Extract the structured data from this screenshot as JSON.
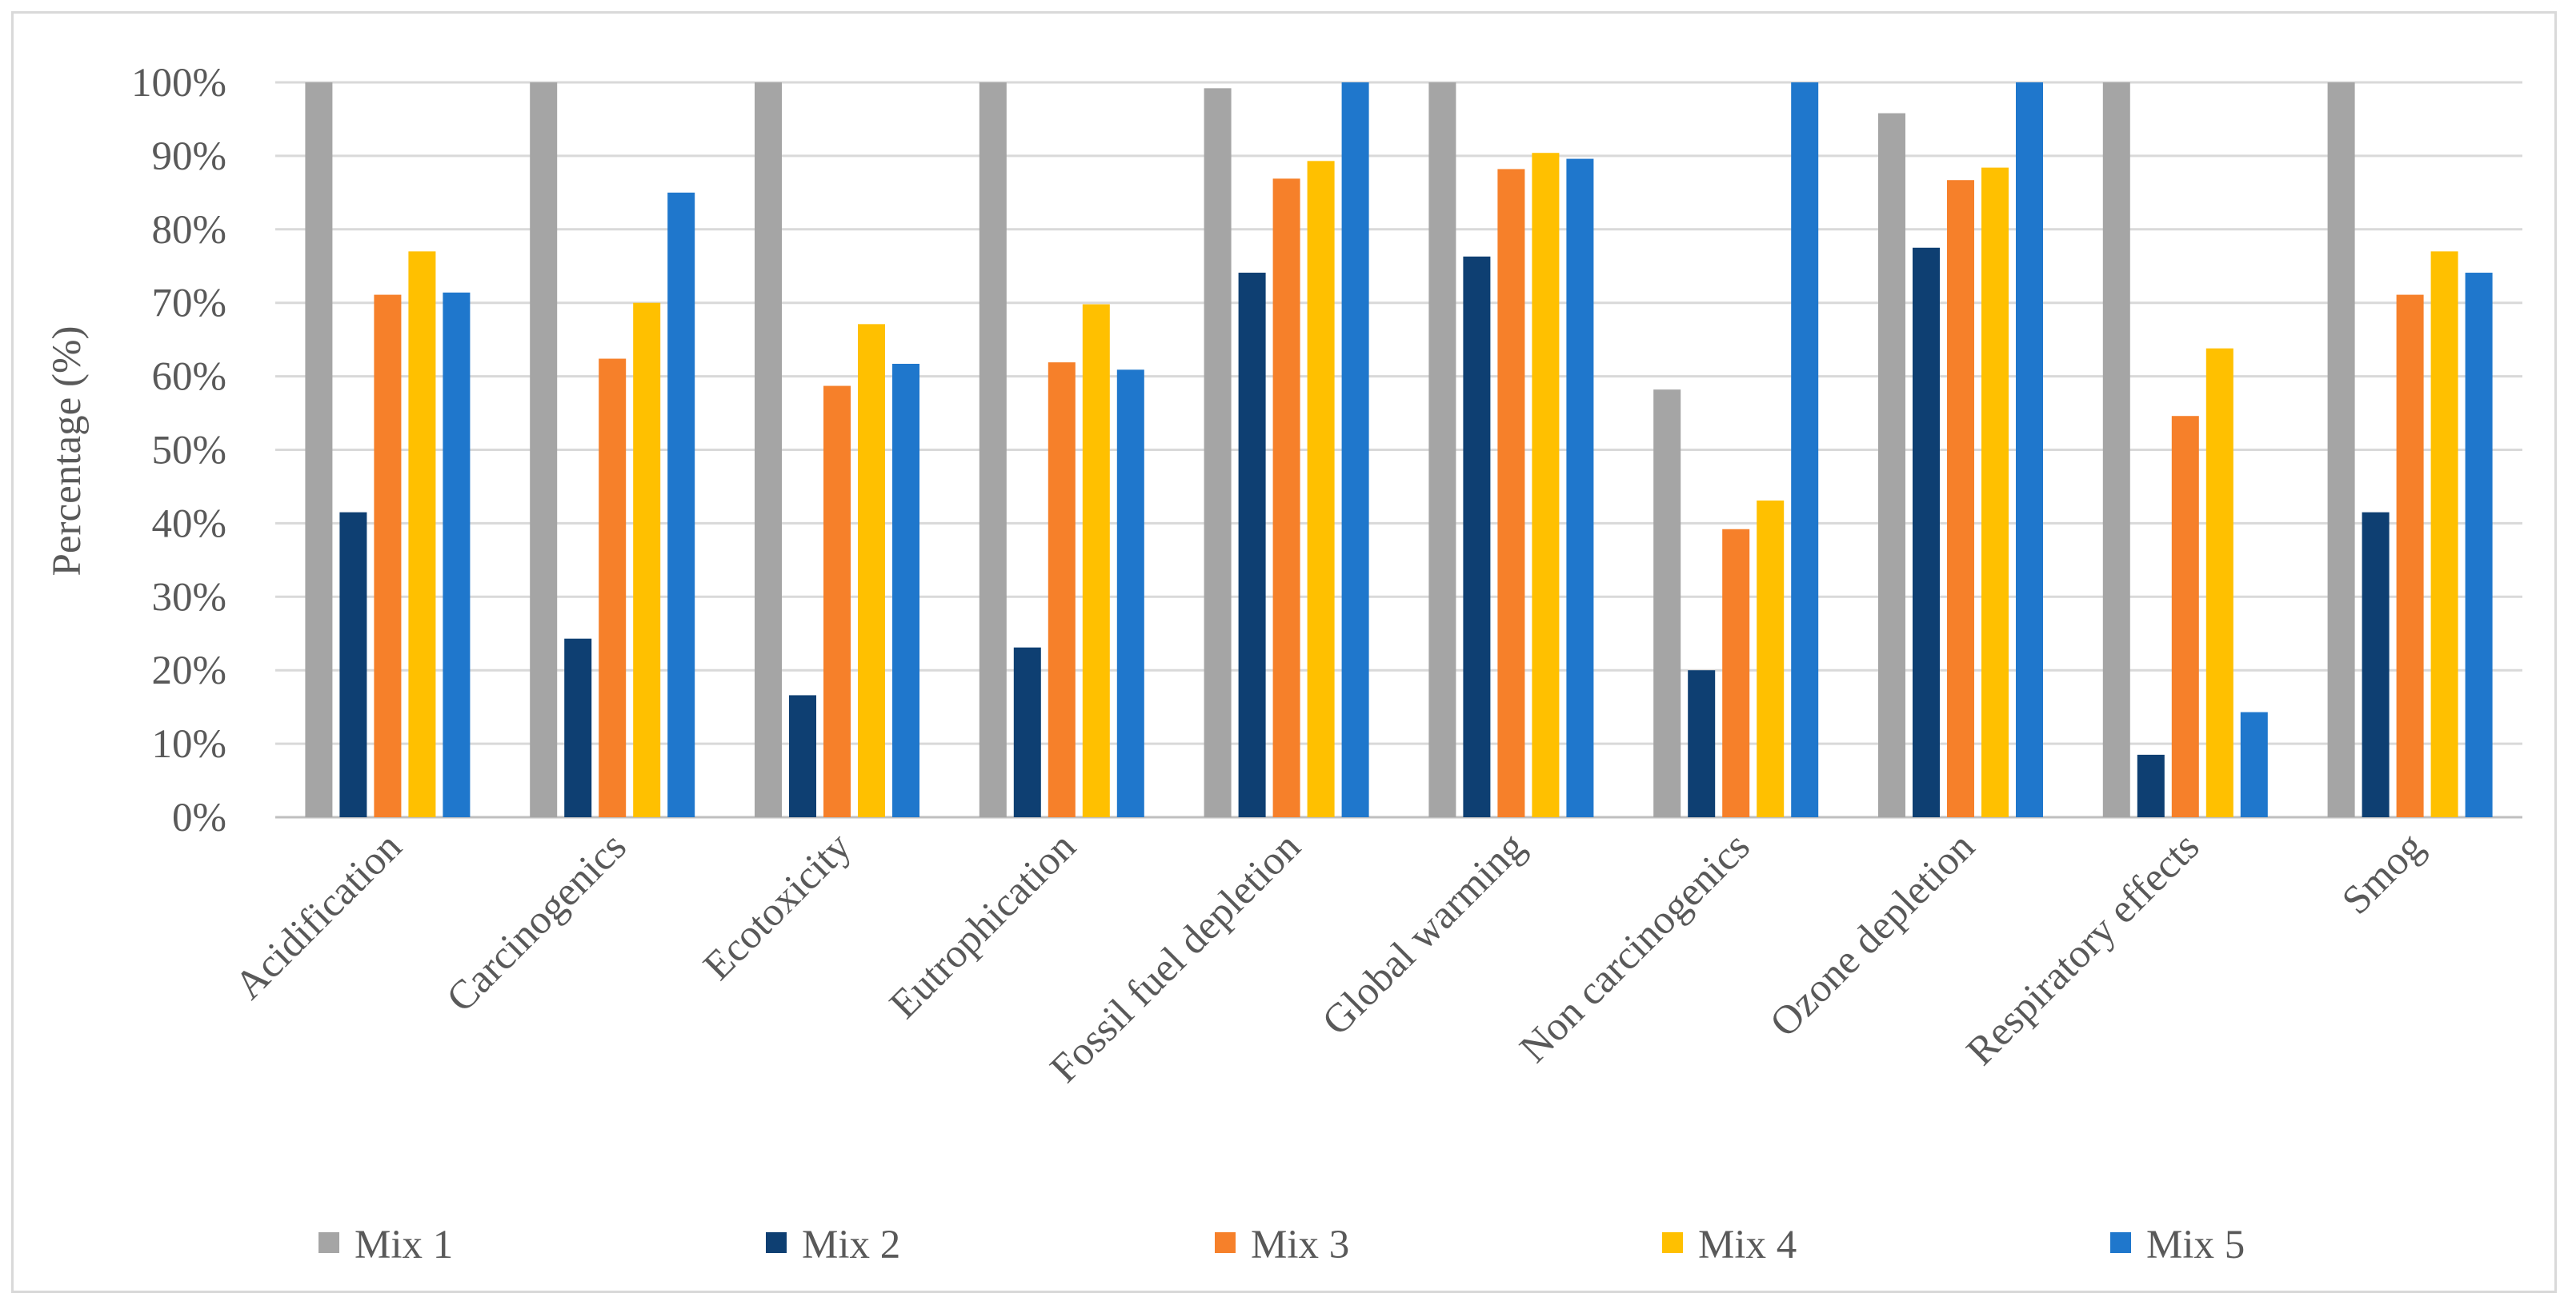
{
  "chart_data": {
    "type": "bar",
    "title": "",
    "xlabel": "",
    "ylabel": "Percentage (%)",
    "ylim": [
      0,
      100
    ],
    "y_ticks": [
      "0%",
      "10%",
      "20%",
      "30%",
      "40%",
      "50%",
      "60%",
      "70%",
      "80%",
      "90%",
      "100%"
    ],
    "grid": "horizontal",
    "legend_position": "bottom",
    "categories": [
      "Acidification",
      "Carcinogenics",
      "Ecotoxicity",
      "Eutrophication",
      "Fossil fuel depletion",
      "Global warming",
      "Non carcinogenics",
      "Ozone depletion",
      "Respiratory effects",
      "Smog"
    ],
    "series": [
      {
        "name": "Mix 1",
        "color": "#a5a5a5",
        "values": [
          100,
          100,
          100,
          100,
          99.2,
          100,
          58.2,
          95.8,
          100,
          100
        ]
      },
      {
        "name": "Mix 2",
        "color": "#0e3f72",
        "values": [
          41.5,
          24.3,
          16.6,
          23.1,
          74.1,
          76.3,
          20.0,
          77.5,
          8.5,
          41.5
        ]
      },
      {
        "name": "Mix 3",
        "color": "#f6802a",
        "values": [
          71.1,
          62.4,
          58.7,
          61.9,
          86.9,
          88.2,
          39.2,
          86.7,
          54.6,
          71.1
        ]
      },
      {
        "name": "Mix 4",
        "color": "#ffc000",
        "values": [
          77.0,
          70.0,
          67.1,
          69.8,
          89.3,
          90.4,
          43.1,
          88.4,
          63.8,
          77.0
        ]
      },
      {
        "name": "Mix 5",
        "color": "#1f77cc",
        "values": [
          71.4,
          85.0,
          61.7,
          60.9,
          100,
          89.6,
          100,
          100,
          14.3,
          74.1
        ]
      }
    ]
  }
}
